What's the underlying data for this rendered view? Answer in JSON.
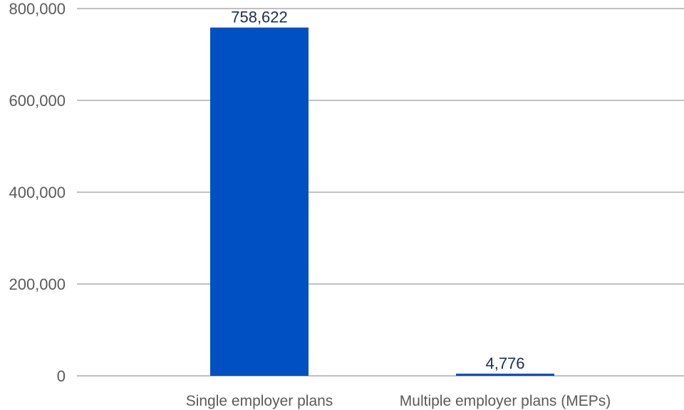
{
  "chart_data": {
    "type": "bar",
    "categories": [
      "Single employer plans",
      "Multiple employer plans (MEPs)"
    ],
    "values": [
      758622,
      4776
    ],
    "data_labels": [
      "758,622",
      "4,776"
    ],
    "title": "",
    "xlabel": "",
    "ylabel": "",
    "ylim": [
      0,
      800000
    ],
    "yticks": [
      0,
      200000,
      400000,
      600000,
      800000
    ],
    "ytick_labels": [
      "0",
      "200,000",
      "400,000",
      "600,000",
      "800,000"
    ],
    "grid": "horizontal",
    "legend": "none",
    "colors": {
      "bar": "#0050c3",
      "grid": "#9a9a9a",
      "tick_text": "#5a5a5a",
      "data_label_text": "#1c2b57"
    }
  }
}
